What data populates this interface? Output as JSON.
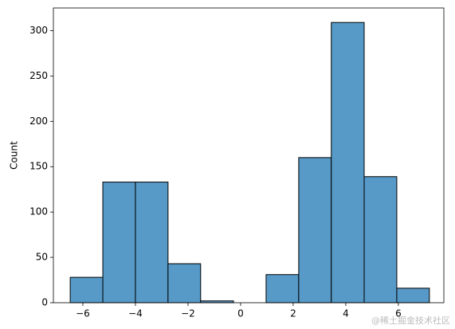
{
  "chart_data": {
    "type": "histogram",
    "ylabel": "Count",
    "bins": [
      -6.48,
      -5.24,
      -4.0,
      -2.76,
      -1.52,
      -0.27,
      0.97,
      2.21,
      3.45,
      4.7,
      5.94,
      7.18
    ],
    "values": [
      28,
      133,
      133,
      43,
      2,
      0,
      31,
      160,
      309,
      139,
      16
    ],
    "color": "#5799c7",
    "edgecolor": "#000000",
    "xlim": [
      -7.12,
      7.73
    ],
    "ylim": [
      0,
      325
    ],
    "xticks": [
      {
        "value": -6,
        "label": "−6"
      },
      {
        "value": -4,
        "label": "−4"
      },
      {
        "value": -2,
        "label": "−2"
      },
      0,
      2,
      4,
      6
    ],
    "yticks": [
      0,
      50,
      100,
      150,
      200,
      250,
      300
    ],
    "watermark": "@稀土掘金技术社区"
  }
}
